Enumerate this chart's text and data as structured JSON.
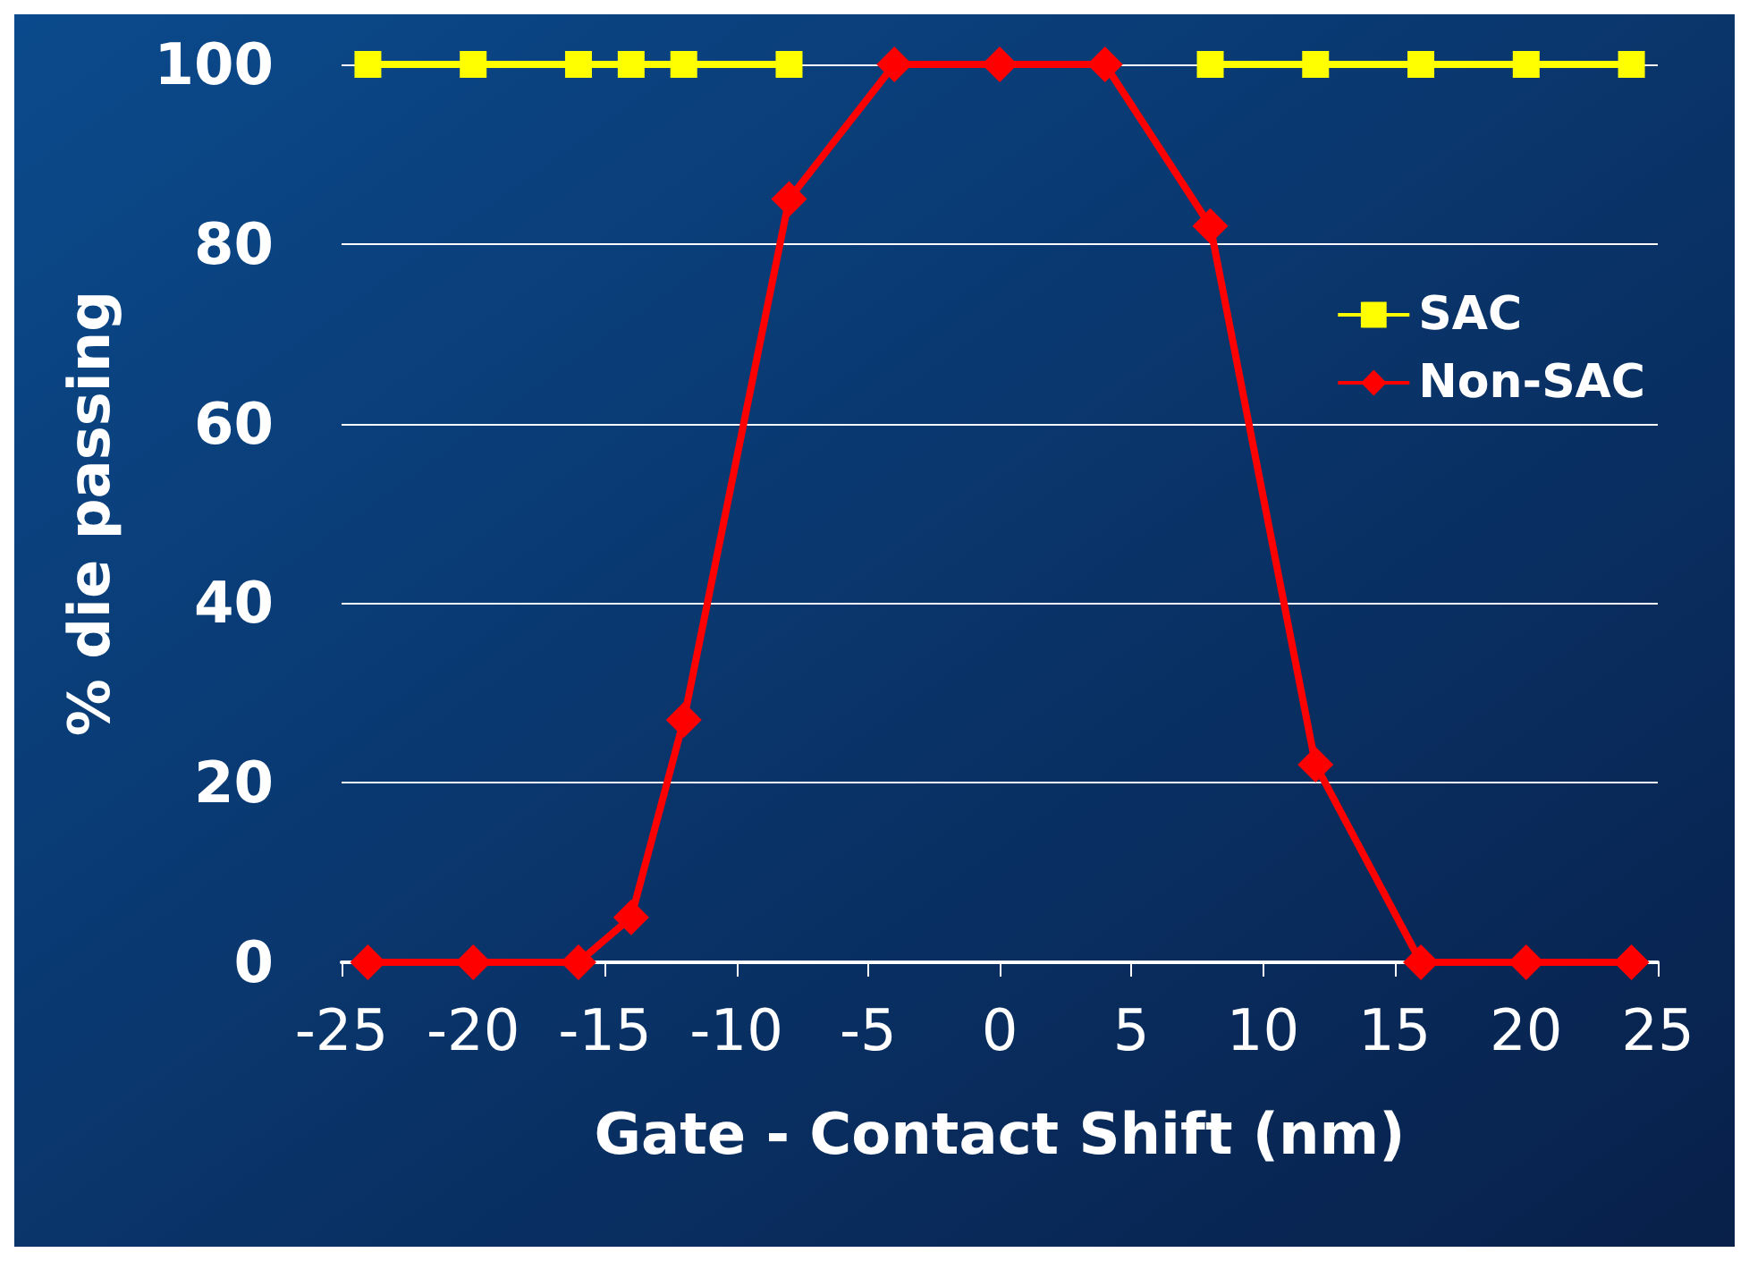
{
  "chart_data": {
    "type": "line",
    "xlabel": "Gate - Contact Shift (nm)",
    "ylabel": "% die passing",
    "x": [
      -24,
      -20,
      -16,
      -14,
      -12,
      -8,
      -4,
      0,
      4,
      8,
      12,
      16,
      20,
      24
    ],
    "series": [
      {
        "name": "SAC",
        "color": "#ffff00",
        "marker": "square",
        "values": [
          100,
          100,
          100,
          100,
          100,
          100,
          null,
          null,
          null,
          100,
          100,
          100,
          100,
          100
        ]
      },
      {
        "name": "Non-SAC",
        "color": "#ff0000",
        "marker": "diamond",
        "values": [
          0,
          0,
          0,
          5,
          27,
          85,
          100,
          100,
          100,
          82,
          22,
          0,
          0,
          0
        ]
      }
    ],
    "xlim": [
      -25,
      25
    ],
    "xticks": [
      -25,
      -20,
      -15,
      -10,
      -5,
      0,
      5,
      10,
      15,
      20,
      25
    ],
    "ylim": [
      0,
      100
    ],
    "yticks": [
      0,
      20,
      40,
      60,
      80,
      100
    ],
    "grid": "y",
    "legend": "right",
    "line_style": "solid"
  }
}
